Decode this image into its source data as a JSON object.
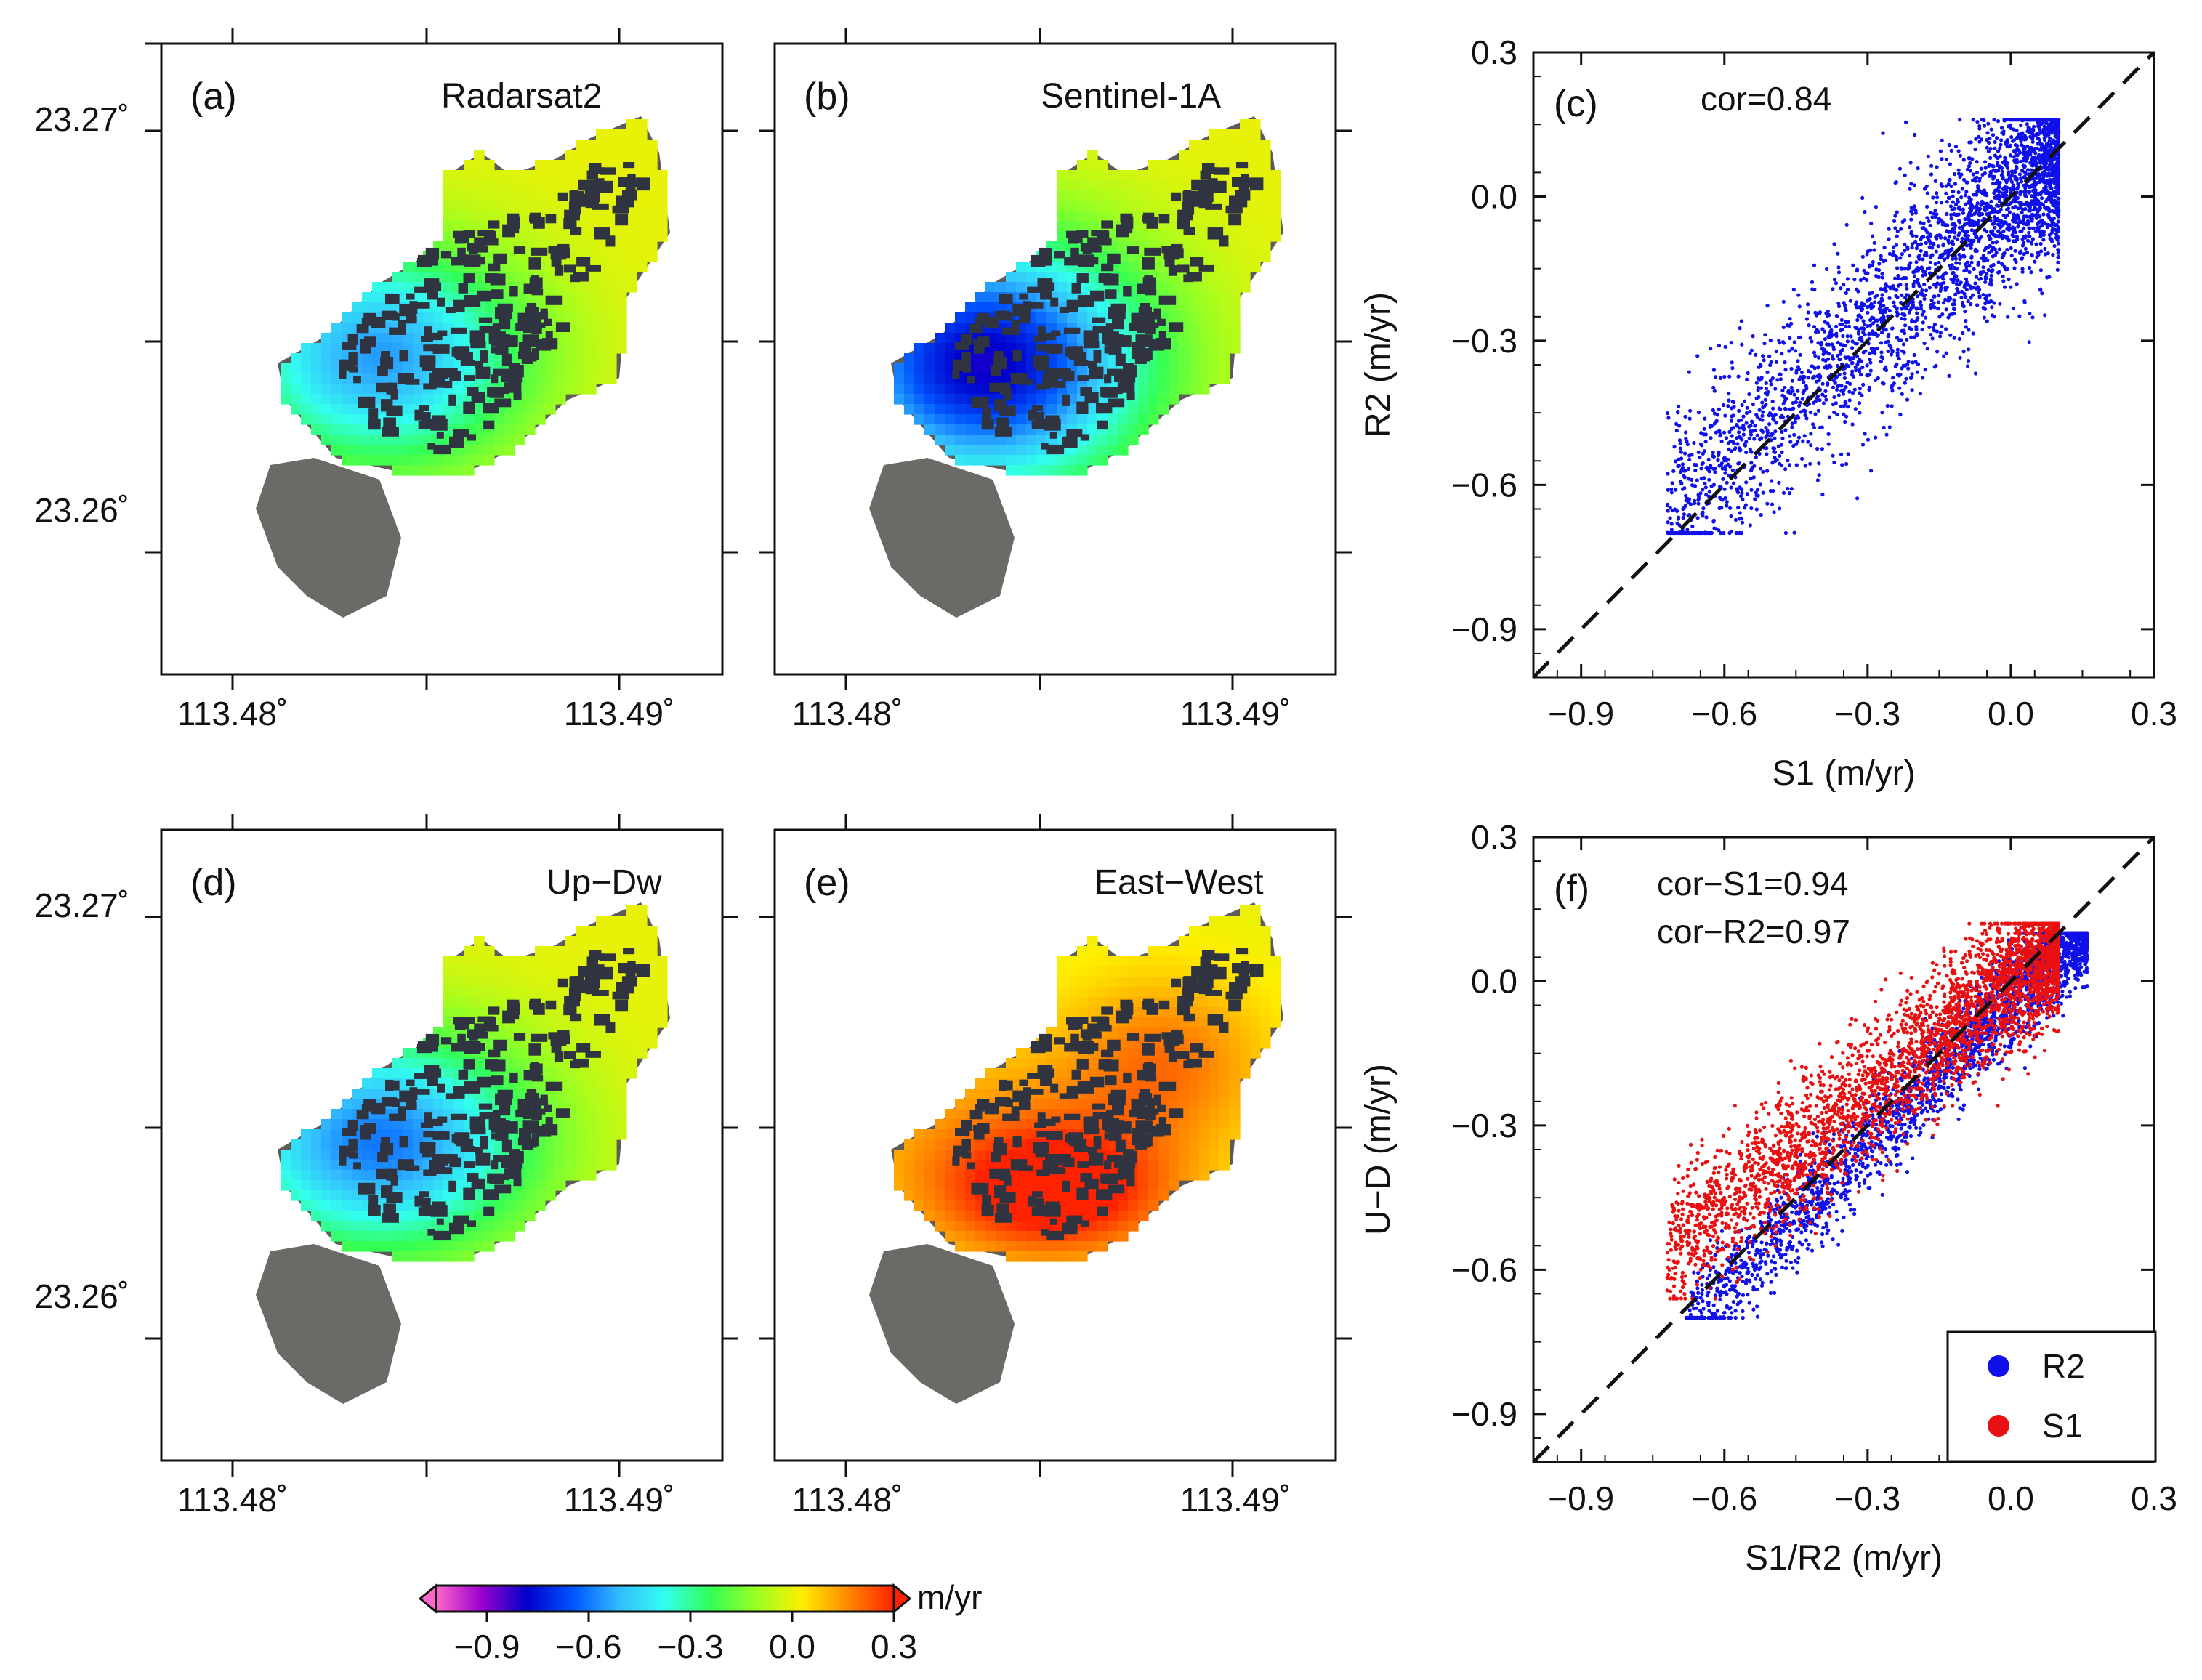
{
  "colors": {
    "r2": "#1010e8",
    "s1": "#e81010",
    "frame": "#111111",
    "one_to_one": "#111111"
  },
  "map_panels": [
    {
      "tag": "(a)",
      "title": "Radarsat2",
      "field": "los_r2"
    },
    {
      "tag": "(b)",
      "title": "Sentinel-1A",
      "field": "los_s1"
    },
    {
      "tag": "(d)",
      "title": "Up−Dw",
      "field": "up_down"
    },
    {
      "tag": "(e)",
      "title": "East−West",
      "field": "east_west"
    }
  ],
  "map_axes": {
    "lat_ticks": [
      "23.27˚",
      "23.26˚"
    ],
    "lon_ticks": [
      "113.48˚",
      "113.49˚"
    ]
  },
  "colorbar": {
    "unit": "m/yr",
    "ticks": [
      "−0.9",
      "−0.6",
      "−0.3",
      "0.0",
      "0.3"
    ],
    "range": [
      -1.05,
      0.3
    ],
    "colormap": [
      "#ff66cc",
      "#9900cc",
      "#0000cc",
      "#0055ff",
      "#33bbff",
      "#33ffee",
      "#33ff55",
      "#99ff22",
      "#ffee00",
      "#ff8800",
      "#ff2200"
    ]
  },
  "chart_data": [
    {
      "type": "scatter",
      "tag": "(c)",
      "xlabel": "S1 (m/yr)",
      "ylabel": "R2 (m/yr)",
      "xlim": [
        -1.0,
        0.3
      ],
      "ylim": [
        -1.0,
        0.3
      ],
      "xticks": [
        "−0.9",
        "−0.6",
        "−0.3",
        "0.0",
        "0.3"
      ],
      "yticks": [
        "−0.9",
        "−0.6",
        "−0.3",
        "0.0",
        "0.3"
      ],
      "grid": false,
      "reference_line": "1:1 dashed",
      "annotations": [
        "cor=0.84"
      ],
      "series": [
        {
          "color": "#1010e8",
          "cloud": {
            "x_range": [
              -0.72,
              0.1
            ],
            "slope": 0.92,
            "intercept": 0.0,
            "spread": 0.1,
            "count": 3200,
            "max_y": 0.16,
            "min_y": -0.7
          }
        }
      ]
    },
    {
      "type": "scatter",
      "tag": "(f)",
      "xlabel": "S1/R2 (m/yr)",
      "ylabel": "U−D (m/yr)",
      "xlim": [
        -1.0,
        0.3
      ],
      "ylim": [
        -1.0,
        0.3
      ],
      "xticks": [
        "−0.9",
        "−0.6",
        "−0.3",
        "0.0",
        "0.3"
      ],
      "yticks": [
        "−0.9",
        "−0.6",
        "−0.3",
        "0.0",
        "0.3"
      ],
      "grid": false,
      "reference_line": "1:1 dashed",
      "annotations": [
        "cor−S1=0.94",
        "cor−R2=0.97"
      ],
      "legend": {
        "placement": "bottom-right",
        "entries": [
          "R2",
          "S1"
        ]
      },
      "series": [
        {
          "name": "R2",
          "color": "#1010e8",
          "cloud": {
            "x_range": [
              -0.68,
              0.16
            ],
            "slope": 1.0,
            "intercept": -0.04,
            "spread": 0.05,
            "count": 2600,
            "max_y": 0.1,
            "min_y": -0.7
          }
        },
        {
          "name": "S1",
          "color": "#e81010",
          "cloud": {
            "x_range": [
              -0.72,
              0.1
            ],
            "slope": 0.78,
            "intercept": 0.0,
            "spread": 0.07,
            "count": 3400,
            "max_y": 0.12,
            "min_y": -0.66
          }
        }
      ]
    }
  ]
}
